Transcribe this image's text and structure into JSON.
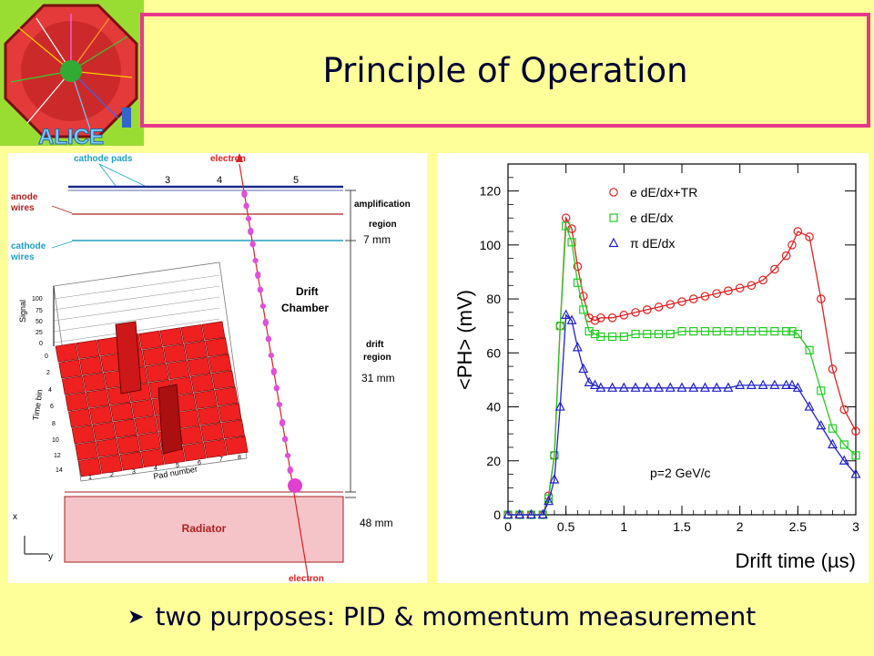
{
  "slide": {
    "title": "Principle of Operation",
    "logo_text": "ALICE",
    "bullet": "two purposes: PID & momentum measurement"
  },
  "diagram": {
    "cathode_pads_label": "cathode pads",
    "pad_numbers": [
      "3",
      "4",
      "5"
    ],
    "electron_top": "electron",
    "electron_bottom": "electron",
    "anode_wires_label": [
      "anode",
      "wires"
    ],
    "cathode_wires_label": [
      "cathode",
      "wires"
    ],
    "amplification_label": [
      "amplification",
      "region"
    ],
    "drift_chamber_label": [
      "Drift",
      "Chamber"
    ],
    "drift_region_label": [
      "drift",
      "region"
    ],
    "radiator_label": "Radiator",
    "dim_7": "7 mm",
    "dim_31": "31 mm",
    "dim_48": "48 mm",
    "axis_x": "x",
    "axis_y": "y",
    "lego": {
      "signal_label": "Signal",
      "timebin_label": "Time bin",
      "padnumber_label": "Pad number",
      "signal_ticks": [
        "100",
        "75",
        "50",
        "25",
        "0"
      ],
      "timebin_ticks": [
        "0",
        "2",
        "4",
        "6",
        "8",
        "10",
        "12",
        "14"
      ],
      "pad_ticks": [
        "1",
        "2",
        "3",
        "4",
        "5",
        "6",
        "7",
        "8"
      ]
    }
  },
  "chart_data": {
    "type": "line",
    "ylabel": "<PH> (mV)",
    "xlabel": "Drift time (µs)",
    "annotation": "p=2 GeV/c",
    "xlim": [
      0,
      3
    ],
    "ylim": [
      0,
      130
    ],
    "x_ticks": [
      "0",
      "0.5",
      "1",
      "1.5",
      "2",
      "2.5",
      "3"
    ],
    "y_ticks": [
      "0",
      "20",
      "40",
      "60",
      "80",
      "100",
      "120"
    ],
    "x": [
      0.0,
      0.1,
      0.2,
      0.3,
      0.35,
      0.4,
      0.45,
      0.5,
      0.55,
      0.6,
      0.65,
      0.7,
      0.75,
      0.8,
      0.9,
      1.0,
      1.1,
      1.2,
      1.3,
      1.4,
      1.5,
      1.6,
      1.7,
      1.8,
      1.9,
      2.0,
      2.1,
      2.2,
      2.3,
      2.4,
      2.45,
      2.5,
      2.6,
      2.7,
      2.8,
      2.9,
      3.0
    ],
    "series": [
      {
        "name": "e dE/dx+TR",
        "color": "#e02020",
        "marker": "circle",
        "values": [
          0,
          0,
          0,
          0,
          7,
          22,
          70,
          110,
          106,
          92,
          81,
          73,
          72,
          73,
          73,
          74,
          75,
          76,
          77,
          78,
          79,
          80,
          81,
          82,
          83,
          84,
          85,
          87,
          91,
          96,
          100,
          105,
          103,
          80,
          54,
          39,
          31
        ]
      },
      {
        "name": "e dE/dx",
        "color": "#22cc22",
        "marker": "square",
        "values": [
          0,
          0,
          0,
          0,
          6,
          22,
          70,
          107,
          101,
          86,
          76,
          68,
          67,
          66,
          66,
          66,
          67,
          67,
          67,
          67,
          68,
          68,
          68,
          68,
          68,
          68,
          68,
          68,
          68,
          68,
          68,
          67,
          61,
          46,
          32,
          26,
          22
        ]
      },
      {
        "name": "π dE/dx",
        "color": "#2020cc",
        "marker": "triangle",
        "values": [
          0,
          0,
          0,
          0,
          5,
          13,
          40,
          74,
          72,
          62,
          54,
          49,
          48,
          47,
          47,
          47,
          47,
          47,
          47,
          47,
          47,
          47,
          47,
          47,
          47,
          48,
          48,
          48,
          48,
          48,
          48,
          47,
          40,
          33,
          26,
          20,
          15
        ]
      }
    ]
  }
}
